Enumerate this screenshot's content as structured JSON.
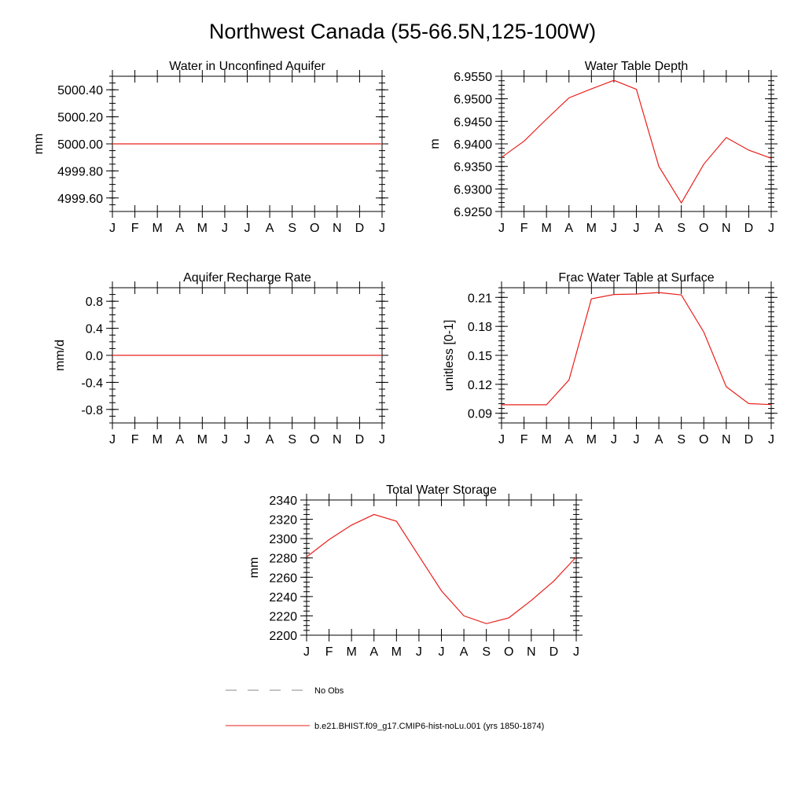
{
  "main_title": "Northwest Canada (55-66.5N,125-100W)",
  "colors": {
    "model": "#e8201c",
    "obs": "#888888",
    "axis": "#000000"
  },
  "legend": {
    "obs_label": "No Obs",
    "model_label": "b.e21.BHIST.f09_g17.CMIP6-hist-noLu.001 (yrs 1850-1874)"
  },
  "chart_data": [
    {
      "type": "line",
      "title": "Water in Unconfined Aquifer",
      "ylabel": "mm",
      "x": [
        "J",
        "F",
        "M",
        "A",
        "M",
        "J",
        "J",
        "A",
        "S",
        "O",
        "N",
        "D",
        "J"
      ],
      "ylim": [
        4999.5,
        5000.5
      ],
      "yticks": [
        {
          "v": 4999.6,
          "label": "4999.60"
        },
        {
          "v": 4999.8,
          "label": "4999.80"
        },
        {
          "v": 5000.0,
          "label": "5000.00"
        },
        {
          "v": 5000.2,
          "label": "5000.20"
        },
        {
          "v": 5000.4,
          "label": "5000.40"
        }
      ],
      "yminor": 0.05,
      "series": [
        {
          "values": [
            5000,
            5000,
            5000,
            5000,
            5000,
            5000,
            5000,
            5000,
            5000,
            5000,
            5000,
            5000,
            5000
          ]
        }
      ]
    },
    {
      "type": "line",
      "title": "Water Table Depth",
      "ylabel": "m",
      "x": [
        "J",
        "F",
        "M",
        "A",
        "M",
        "J",
        "J",
        "A",
        "S",
        "O",
        "N",
        "D",
        "J"
      ],
      "ylim": [
        6.925,
        6.955
      ],
      "yticks": [
        {
          "v": 6.925,
          "label": "6.9250"
        },
        {
          "v": 6.93,
          "label": "6.9300"
        },
        {
          "v": 6.935,
          "label": "6.9350"
        },
        {
          "v": 6.94,
          "label": "6.9400"
        },
        {
          "v": 6.945,
          "label": "6.9450"
        },
        {
          "v": 6.95,
          "label": "6.9500"
        },
        {
          "v": 6.955,
          "label": "6.9550"
        }
      ],
      "yminor": 0.001,
      "series": [
        {
          "values": [
            6.937,
            6.9406,
            6.9455,
            6.9502,
            6.9522,
            6.9541,
            6.9521,
            6.935,
            6.9269,
            6.9355,
            6.9414,
            6.9386,
            6.9368
          ]
        }
      ]
    },
    {
      "type": "line",
      "title": "Aquifer Recharge Rate",
      "ylabel": "mm/d",
      "x": [
        "J",
        "F",
        "M",
        "A",
        "M",
        "J",
        "J",
        "A",
        "S",
        "O",
        "N",
        "D",
        "J"
      ],
      "ylim": [
        -1.0,
        1.0
      ],
      "yticks": [
        {
          "v": -0.8,
          "label": "-0.8"
        },
        {
          "v": -0.4,
          "label": "-0.4"
        },
        {
          "v": 0.0,
          "label": "0.0"
        },
        {
          "v": 0.4,
          "label": "0.4"
        },
        {
          "v": 0.8,
          "label": "0.8"
        }
      ],
      "yminor": 0.1,
      "series": [
        {
          "values": [
            0,
            0,
            0,
            0,
            0,
            0,
            0,
            0,
            0,
            0,
            0,
            0,
            0
          ]
        }
      ]
    },
    {
      "type": "line",
      "title": "Frac Water Table at Surface",
      "ylabel": "unitless [0-1]",
      "x": [
        "J",
        "F",
        "M",
        "A",
        "M",
        "J",
        "J",
        "A",
        "S",
        "O",
        "N",
        "D",
        "J"
      ],
      "ylim": [
        0.08,
        0.22
      ],
      "yticks": [
        {
          "v": 0.09,
          "label": "0.09"
        },
        {
          "v": 0.12,
          "label": "0.12"
        },
        {
          "v": 0.15,
          "label": "0.15"
        },
        {
          "v": 0.18,
          "label": "0.18"
        },
        {
          "v": 0.21,
          "label": "0.21"
        }
      ],
      "yminor": 0.005,
      "series": [
        {
          "values": [
            0.0988,
            0.0988,
            0.0988,
            0.1245,
            0.2085,
            0.213,
            0.2135,
            0.215,
            0.2125,
            0.174,
            0.1175,
            0.1,
            0.099
          ]
        }
      ]
    },
    {
      "type": "line",
      "title": "Total Water Storage",
      "ylabel": "mm",
      "x": [
        "J",
        "F",
        "M",
        "A",
        "M",
        "J",
        "J",
        "A",
        "S",
        "O",
        "N",
        "D",
        "J"
      ],
      "ylim": [
        2200,
        2340
      ],
      "yticks": [
        {
          "v": 2200,
          "label": "2200"
        },
        {
          "v": 2220,
          "label": "2220"
        },
        {
          "v": 2240,
          "label": "2240"
        },
        {
          "v": 2260,
          "label": "2260"
        },
        {
          "v": 2280,
          "label": "2280"
        },
        {
          "v": 2300,
          "label": "2300"
        },
        {
          "v": 2320,
          "label": "2320"
        },
        {
          "v": 2340,
          "label": "2340"
        }
      ],
      "yminor": 5,
      "series": [
        {
          "values": [
            2281,
            2299,
            2314,
            2325,
            2318,
            2282,
            2246,
            2220,
            2212,
            2218,
            2236,
            2256,
            2281
          ]
        }
      ]
    }
  ]
}
